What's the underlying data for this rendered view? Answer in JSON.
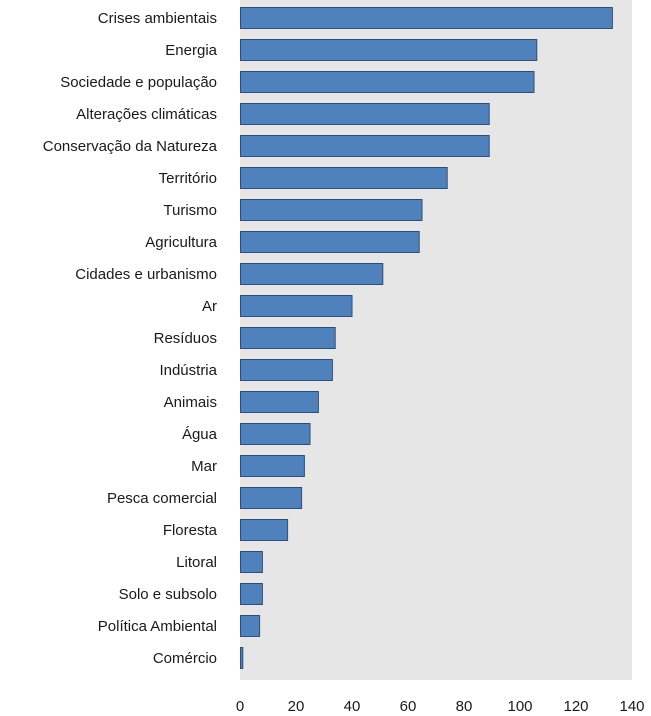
{
  "chart_data": {
    "type": "bar",
    "orientation": "horizontal",
    "title": "",
    "xlabel": "",
    "ylabel": "",
    "categories": [
      "Crises ambientais",
      "Energia",
      "Sociedade e população",
      "Alterações climáticas",
      "Conservação da Natureza",
      "Território",
      "Turismo",
      "Agricultura",
      "Cidades e urbanismo",
      "Ar",
      "Resíduos",
      "Indústria",
      "Animais",
      "Água",
      "Mar",
      "Pesca comercial",
      "Floresta",
      "Litoral",
      "Solo e subsolo",
      "Política Ambiental",
      "Comércio"
    ],
    "values": [
      133,
      106,
      105,
      89,
      89,
      74,
      65,
      64,
      51,
      40,
      34,
      33,
      28,
      25,
      23,
      22,
      17,
      8,
      8,
      7,
      1
    ],
    "xlim": [
      0,
      140
    ],
    "x_ticks": [
      "0",
      "20",
      "40",
      "60",
      "80",
      "100",
      "120",
      "140"
    ],
    "grid": false,
    "legend": "none",
    "colors": {
      "bar_fill": "#4f81bd",
      "bar_stroke": "#2b4f7a",
      "plot_background": "#e6e6e6"
    }
  }
}
